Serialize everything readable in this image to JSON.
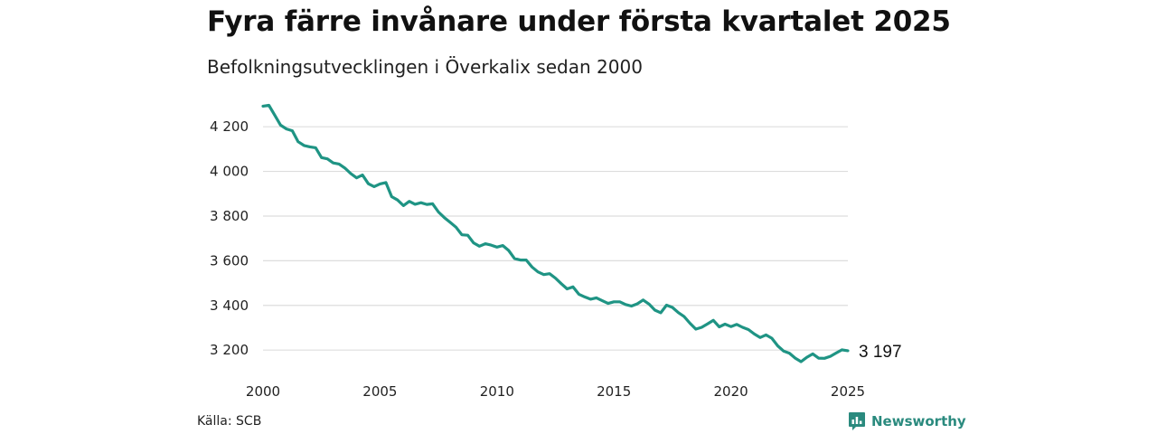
{
  "colors": {
    "line": "#1f9484",
    "brand": "#2a8a7e",
    "grid": "#dddddd"
  },
  "footer": {
    "source": "Källa: SCB",
    "brand": "Newsworthy",
    "brand_icon": "bar-chart-speech-icon"
  },
  "chart_data": {
    "type": "line",
    "title": "Fyra färre invånare under första kvartalet 2025",
    "subtitle": "Befolkningsutvecklingen i Överkalix sedan 2000",
    "xlabel": "",
    "ylabel": "",
    "xlim": [
      2000,
      2025
    ],
    "ylim": [
      3140,
      4310
    ],
    "x_ticks": [
      2000,
      2005,
      2010,
      2015,
      2020,
      2025
    ],
    "x_tick_labels": [
      "2000",
      "2005",
      "2010",
      "2015",
      "2020",
      "2025"
    ],
    "y_ticks": [
      3200,
      3400,
      3600,
      3800,
      4000,
      4200
    ],
    "y_tick_labels": [
      "3 200",
      "3 400",
      "3 600",
      "3 800",
      "4 000",
      "4 200"
    ],
    "grid": "horizontal",
    "legend": "none",
    "end_label": "3 197",
    "series": [
      {
        "values": [
          [
            2000.0,
            4292
          ],
          [
            2000.25,
            4296
          ],
          [
            2000.5,
            4252
          ],
          [
            2000.75,
            4207
          ],
          [
            2001.0,
            4190
          ],
          [
            2001.25,
            4182
          ],
          [
            2001.5,
            4133
          ],
          [
            2001.75,
            4116
          ],
          [
            2002.0,
            4110
          ],
          [
            2002.25,
            4106
          ],
          [
            2002.5,
            4062
          ],
          [
            2002.75,
            4056
          ],
          [
            2003.0,
            4038
          ],
          [
            2003.25,
            4033
          ],
          [
            2003.5,
            4015
          ],
          [
            2003.75,
            3990
          ],
          [
            2004.0,
            3971
          ],
          [
            2004.25,
            3984
          ],
          [
            2004.5,
            3945
          ],
          [
            2004.75,
            3932
          ],
          [
            2005.0,
            3944
          ],
          [
            2005.25,
            3950
          ],
          [
            2005.5,
            3887
          ],
          [
            2005.75,
            3872
          ],
          [
            2006.0,
            3847
          ],
          [
            2006.25,
            3866
          ],
          [
            2006.5,
            3853
          ],
          [
            2006.75,
            3860
          ],
          [
            2007.0,
            3852
          ],
          [
            2007.25,
            3855
          ],
          [
            2007.5,
            3818
          ],
          [
            2007.75,
            3793
          ],
          [
            2008.0,
            3772
          ],
          [
            2008.25,
            3750
          ],
          [
            2008.5,
            3716
          ],
          [
            2008.75,
            3714
          ],
          [
            2009.0,
            3680
          ],
          [
            2009.25,
            3665
          ],
          [
            2009.5,
            3676
          ],
          [
            2009.75,
            3670
          ],
          [
            2010.0,
            3661
          ],
          [
            2010.25,
            3668
          ],
          [
            2010.5,
            3646
          ],
          [
            2010.75,
            3610
          ],
          [
            2011.0,
            3603
          ],
          [
            2011.25,
            3603
          ],
          [
            2011.5,
            3572
          ],
          [
            2011.75,
            3550
          ],
          [
            2012.0,
            3538
          ],
          [
            2012.25,
            3542
          ],
          [
            2012.5,
            3522
          ],
          [
            2012.75,
            3497
          ],
          [
            2013.0,
            3474
          ],
          [
            2013.25,
            3483
          ],
          [
            2013.5,
            3450
          ],
          [
            2013.75,
            3438
          ],
          [
            2014.0,
            3428
          ],
          [
            2014.25,
            3434
          ],
          [
            2014.5,
            3421
          ],
          [
            2014.75,
            3409
          ],
          [
            2015.0,
            3416
          ],
          [
            2015.25,
            3416
          ],
          [
            2015.5,
            3404
          ],
          [
            2015.75,
            3397
          ],
          [
            2016.0,
            3407
          ],
          [
            2016.25,
            3424
          ],
          [
            2016.5,
            3406
          ],
          [
            2016.75,
            3379
          ],
          [
            2017.0,
            3367
          ],
          [
            2017.25,
            3401
          ],
          [
            2017.5,
            3391
          ],
          [
            2017.75,
            3368
          ],
          [
            2018.0,
            3350
          ],
          [
            2018.25,
            3320
          ],
          [
            2018.5,
            3294
          ],
          [
            2018.75,
            3302
          ],
          [
            2019.0,
            3317
          ],
          [
            2019.25,
            3333
          ],
          [
            2019.5,
            3304
          ],
          [
            2019.75,
            3316
          ],
          [
            2020.0,
            3305
          ],
          [
            2020.25,
            3315
          ],
          [
            2020.5,
            3302
          ],
          [
            2020.75,
            3292
          ],
          [
            2021.0,
            3272
          ],
          [
            2021.25,
            3256
          ],
          [
            2021.5,
            3268
          ],
          [
            2021.75,
            3253
          ],
          [
            2022.0,
            3219
          ],
          [
            2022.25,
            3196
          ],
          [
            2022.5,
            3186
          ],
          [
            2022.75,
            3164
          ],
          [
            2023.0,
            3148
          ],
          [
            2023.25,
            3168
          ],
          [
            2023.5,
            3183
          ],
          [
            2023.75,
            3164
          ],
          [
            2024.0,
            3163
          ],
          [
            2024.25,
            3172
          ],
          [
            2024.5,
            3187
          ],
          [
            2024.75,
            3201
          ],
          [
            2025.0,
            3197
          ]
        ]
      }
    ]
  }
}
